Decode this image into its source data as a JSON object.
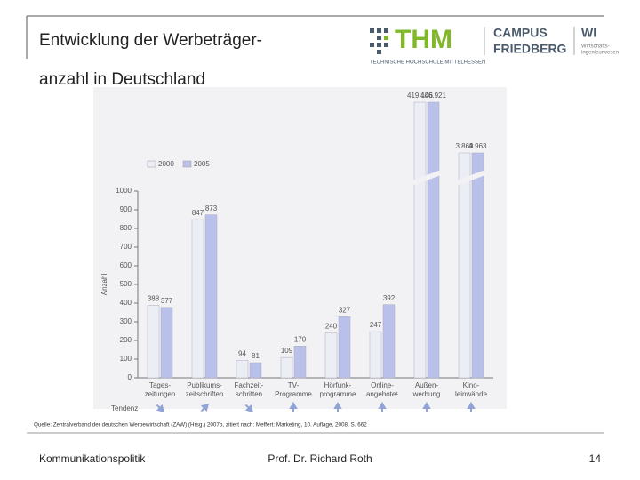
{
  "slide_title": [
    "Entwicklung der Werbeträger-",
    "anzahl in Deutschland"
  ],
  "logo": {
    "name": "THM",
    "campus": "CAMPUS",
    "friedberg": "FRIEDBERG",
    "subtitle": "TECHNISCHE HOCHSCHULE MITTELHESSEN",
    "dept": "WI",
    "dept_name": [
      "Wirtschafts-",
      "ingenieurwesen"
    ]
  },
  "chart_data": {
    "type": "bar",
    "ylabel": "Anzahl",
    "categories": [
      [
        "Tages-",
        "zeitungen"
      ],
      [
        "Publikums-",
        "zeitschriften"
      ],
      [
        "Fachzeit-",
        "schriften"
      ],
      [
        "TV-",
        "Programme"
      ],
      [
        "Hörfunk-",
        "programme"
      ],
      [
        "Online-",
        "angebote¹"
      ],
      [
        "Außen-",
        "werbung"
      ],
      [
        "Kino-",
        "leinwände"
      ]
    ],
    "series": [
      {
        "name": "2000",
        "color": "#eceef6",
        "values": [
          388,
          847,
          94,
          109,
          240,
          247,
          419146,
          3869
        ],
        "value_labels": [
          "388",
          "847",
          "94",
          "109",
          "240",
          "247",
          "419.146",
          "3.869"
        ]
      },
      {
        "name": "2005",
        "color": "#b9c1ea",
        "values": [
          377,
          873,
          81,
          170,
          327,
          392,
          406921,
          4963
        ],
        "value_labels": [
          "377",
          "873",
          "81",
          "170",
          "327",
          "392",
          "406.921",
          "4.963"
        ]
      }
    ],
    "ylim": [
      0,
      1000
    ],
    "yticks": [
      0,
      100,
      200,
      300,
      400,
      500,
      600,
      700,
      800,
      900,
      1000
    ],
    "trend_label": "Tendenz"
  },
  "source": "Quelle: Zentralverband der deutschen Werbewirtschaft (ZAW) (Hrsg.) 2007b, zitiert nach: Meffert: Marketing, 10. Auflage, 2008, S. 662",
  "footer": {
    "left": "Kommunikationspolitik",
    "center": "Prof. Dr. Richard Roth",
    "page": "14"
  }
}
